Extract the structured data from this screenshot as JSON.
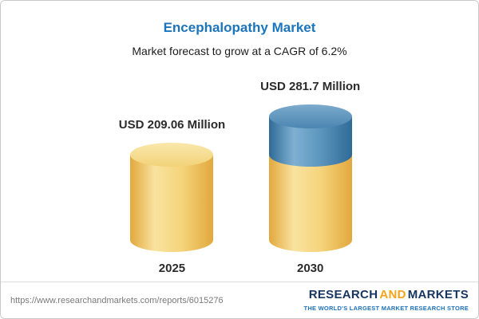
{
  "header": {
    "title": "Encephalopathy Market",
    "subtitle": "Market forecast to grow at a CAGR of 6.2%"
  },
  "chart_data": {
    "type": "bar",
    "variant": "3d-cylinder",
    "title": "Encephalopathy Market",
    "subtitle": "Market forecast to grow at a CAGR of 6.2%",
    "categories": [
      "2025",
      "2030"
    ],
    "values": [
      209.06,
      281.7
    ],
    "value_labels": [
      "USD 209.06 Million",
      "USD 281.7 Million"
    ],
    "unit": "USD Million",
    "cagr": "6.2%",
    "xlabel": "",
    "ylabel": "",
    "legend": "none",
    "grid": false,
    "colors": {
      "base_bar": "#F2CF72",
      "growth_segment": "#4B86B1",
      "title_text": "#1B75BC",
      "label_text": "#2B2B2B"
    },
    "notes": "2030 bar drawn with blue top segment representing growth above the 2025 value"
  },
  "footer": {
    "url": "https://www.researchandmarkets.com/reports/6015276",
    "logo": {
      "research": "RESEARCH",
      "and": "AND",
      "markets": "MARKETS",
      "tagline": "THE WORLD'S LARGEST MARKET RESEARCH STORE"
    }
  }
}
